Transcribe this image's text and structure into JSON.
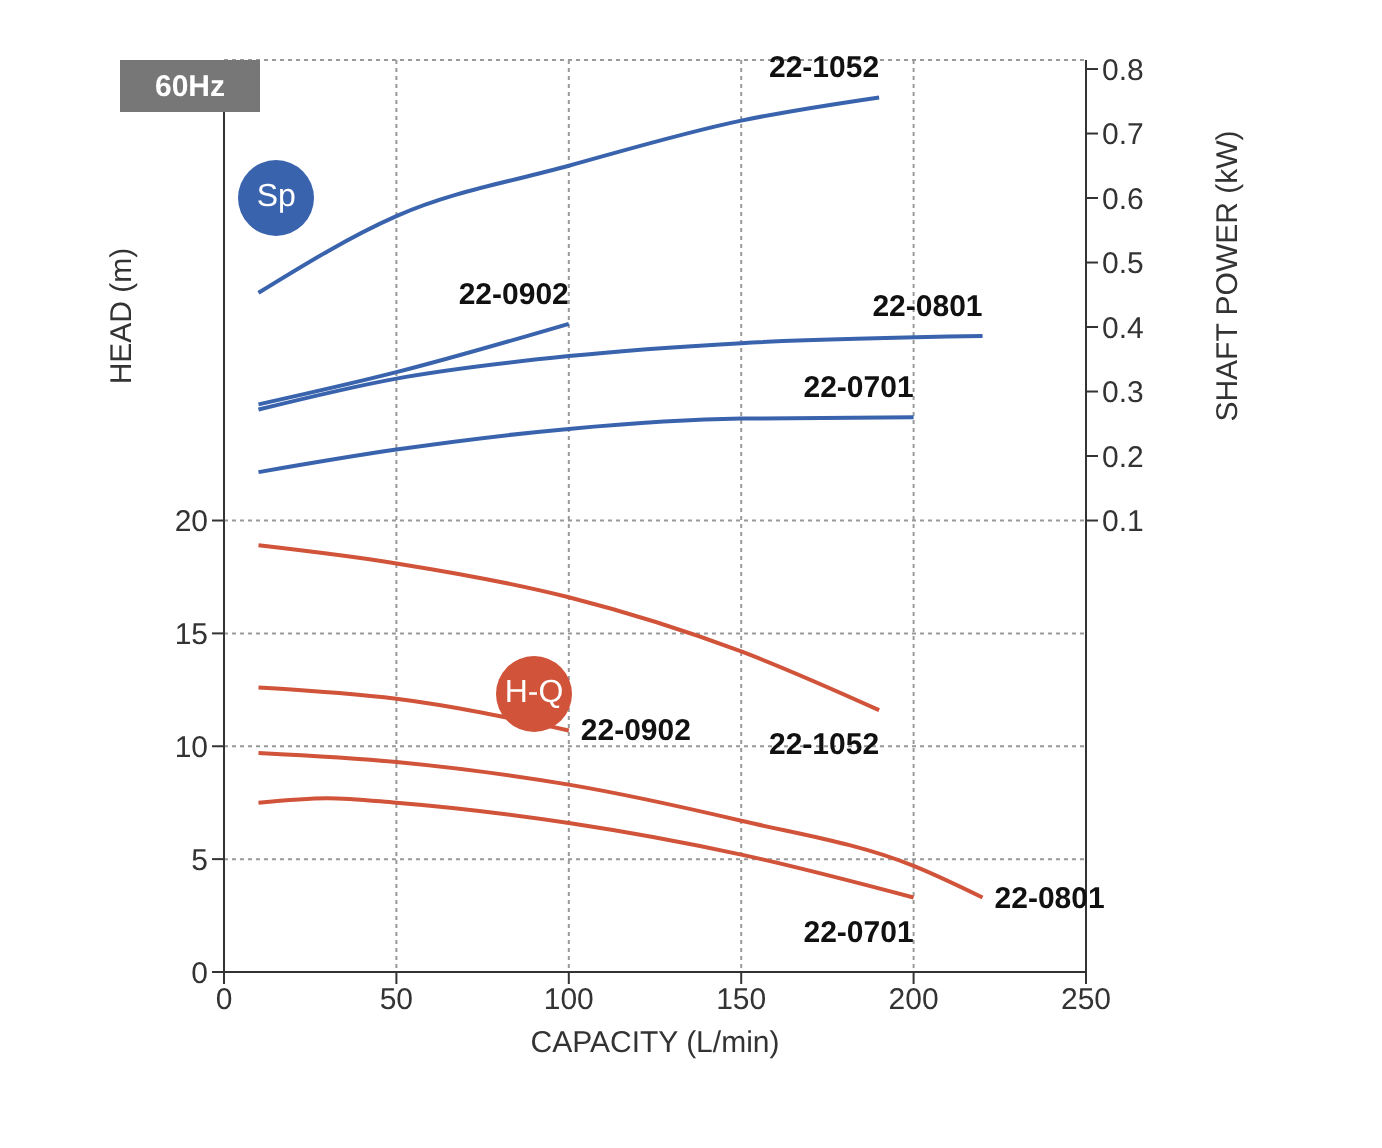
{
  "chart_data": {
    "type": "line",
    "xlabel": "CAPACITY (L/min)",
    "ylabel": "HEAD (m)",
    "y2label": "SHAFT POWER (kW)",
    "xlim": [
      0,
      250
    ],
    "xticks": [
      0,
      50,
      100,
      150,
      200,
      250
    ],
    "ylim": [
      0,
      40.4
    ],
    "yticks": [
      0,
      5,
      10,
      15,
      20
    ],
    "y2lim": [
      -0.6,
      0.814
    ],
    "y2ticks": [
      0.1,
      0.2,
      0.3,
      0.4,
      0.5,
      0.6,
      0.7,
      0.8
    ],
    "grid": true,
    "legend": false,
    "marker": "none",
    "line_style": "solid",
    "annotations": [
      "60Hz",
      "Sp",
      "H-Q"
    ],
    "series": [
      {
        "name": "22-1052",
        "color": "#3a63ad",
        "axis": "y2",
        "x": [
          10,
          50,
          100,
          150,
          190
        ],
        "values": [
          0.453,
          0.572,
          0.65,
          0.72,
          0.756
        ]
      },
      {
        "name": "22-0902",
        "color": "#3a63ad",
        "axis": "y2",
        "x": [
          10,
          50,
          100
        ],
        "values": [
          0.28,
          0.33,
          0.405
        ]
      },
      {
        "name": "22-0801",
        "color": "#3a63ad",
        "axis": "y2",
        "x": [
          10,
          50,
          100,
          150,
          220
        ],
        "values": [
          0.272,
          0.32,
          0.355,
          0.375,
          0.386
        ]
      },
      {
        "name": "22-0701",
        "color": "#3a63ad",
        "axis": "y2",
        "x": [
          10,
          50,
          100,
          150,
          200
        ],
        "values": [
          0.175,
          0.21,
          0.242,
          0.258,
          0.26
        ]
      },
      {
        "name": "22-1052",
        "color": "#d0533a",
        "axis": "y",
        "x": [
          10,
          50,
          100,
          150,
          190
        ],
        "values": [
          18.9,
          18.1,
          16.6,
          14.2,
          11.6
        ]
      },
      {
        "name": "22-0902",
        "color": "#d0533a",
        "axis": "y",
        "x": [
          10,
          50,
          100
        ],
        "values": [
          12.6,
          12.1,
          10.7
        ]
      },
      {
        "name": "22-0801",
        "color": "#d0533a",
        "axis": "y",
        "x": [
          10,
          50,
          100,
          150,
          200,
          220
        ],
        "values": [
          9.7,
          9.3,
          8.3,
          6.7,
          4.7,
          3.3
        ]
      },
      {
        "name": "22-0701",
        "color": "#d0533a",
        "axis": "y",
        "x": [
          10,
          30,
          50,
          100,
          150,
          200
        ],
        "values": [
          7.5,
          7.7,
          7.5,
          6.6,
          5.2,
          3.3
        ]
      }
    ]
  }
}
